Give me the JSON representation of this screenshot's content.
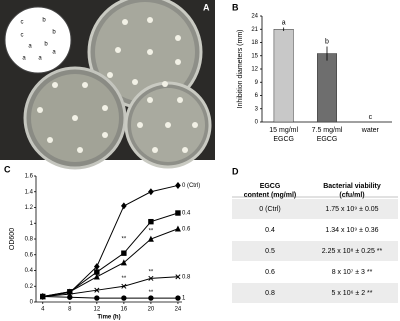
{
  "panel_labels": [
    "A",
    "B",
    "C",
    "D"
  ],
  "photo": {
    "inset_labels": [
      "c",
      "b",
      "c",
      "b",
      "a",
      "b",
      "a",
      "a",
      "a"
    ]
  },
  "chart_data": [
    {
      "type": "bar",
      "ylabel": "Inhibition diameters (mm)",
      "categories": [
        [
          "15 mg/ml",
          "EGCG"
        ],
        [
          "7.5 mg/ml",
          "EGCG"
        ],
        [
          "water"
        ]
      ],
      "values": [
        21,
        15.5,
        0
      ],
      "errors": [
        0.4,
        1.6,
        0
      ],
      "colors": [
        "#c8c8c8",
        "#6e6e6e",
        "#999999"
      ],
      "annotations": [
        "a",
        "b",
        "c"
      ],
      "ylim": [
        0,
        24
      ],
      "yticks": [
        0,
        3,
        6,
        9,
        12,
        15,
        18,
        21,
        24
      ]
    },
    {
      "type": "line",
      "xlabel": "Time (h)",
      "ylabel": "OD600",
      "x": [
        4,
        8,
        12,
        16,
        20,
        24
      ],
      "series": [
        {
          "name": "0 (Ctrl)",
          "color": "#000000",
          "marker": "diamond",
          "values": [
            0.07,
            0.12,
            0.45,
            1.22,
            1.4,
            1.48
          ]
        },
        {
          "name": "0.4",
          "color": "#000000",
          "marker": "square",
          "values": [
            0.07,
            0.13,
            0.38,
            0.62,
            1.02,
            1.13
          ]
        },
        {
          "name": "0.6",
          "color": "#000000",
          "marker": "triangle",
          "values": [
            0.07,
            0.13,
            0.32,
            0.5,
            0.8,
            0.93
          ]
        },
        {
          "name": "0.8",
          "color": "#000000",
          "marker": "x",
          "values": [
            0.07,
            0.1,
            0.15,
            0.2,
            0.3,
            0.32
          ]
        },
        {
          "name": "1",
          "color": "#000000",
          "marker": "circle",
          "values": [
            0.07,
            0.06,
            0.05,
            0.05,
            0.05,
            0.05
          ]
        }
      ],
      "annotations": [
        {
          "x": 16,
          "y": 0.8,
          "text": "**"
        },
        {
          "x": 20,
          "y": 0.9,
          "text": "**"
        },
        {
          "x": 20,
          "y": 0.38,
          "text": "**"
        },
        {
          "x": 16,
          "y": 0.3,
          "text": "**"
        },
        {
          "x": 20,
          "y": 0.12,
          "text": "**"
        }
      ],
      "xlim": [
        3,
        24.6
      ],
      "xticks": [
        4,
        8,
        12,
        16,
        20,
        24
      ],
      "ylim": [
        0,
        1.6
      ],
      "yticks": [
        0,
        0.2,
        0.4,
        0.6,
        0.8,
        1,
        1.2,
        1.4,
        1.6
      ]
    }
  ],
  "table": {
    "header": [
      [
        "EGCG",
        "content (mg/ml)"
      ],
      [
        "Bacterial viability",
        "(cfu/ml)"
      ]
    ],
    "rows": [
      [
        "0 (Ctrl)",
        "1.75 x 10⁹ ± 0.05"
      ],
      [
        "0.4",
        "1.34 x 10⁹ ± 0.36"
      ],
      [
        "0.5",
        "2.25 x 10⁸ ± 0.25 **"
      ],
      [
        "0.6",
        "8 x 10⁷ ± 3 **"
      ],
      [
        "0.8",
        "5 x 10⁶ ± 2 **"
      ]
    ]
  }
}
